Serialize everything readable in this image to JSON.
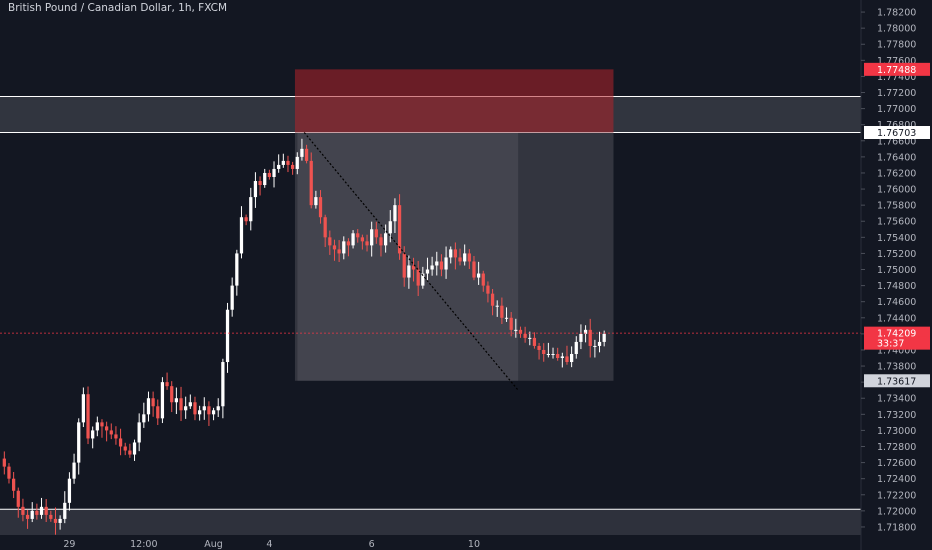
{
  "title": "British Pound / Canadian Dollar, 1h, FXCM",
  "colors": {
    "background": "#131722",
    "up": "#ffffff",
    "down": "#ef5350",
    "axis_text": "#b2b5be",
    "zone": "#3a3d47",
    "stop_box": "#b2222a",
    "profit_box": "#5a5c63",
    "current_price": "#f23645"
  },
  "chart_data": {
    "type": "candlestick",
    "symbol": "British Pound / Canadian Dollar",
    "interval": "1h",
    "source": "FXCM",
    "ylim": [
      1.717,
      1.7835
    ],
    "y_ticks": [
      "1.78200",
      "1.78000",
      "1.77800",
      "1.77600",
      "1.77400",
      "1.77200",
      "1.77000",
      "1.76800",
      "1.76600",
      "1.76400",
      "1.76200",
      "1.76000",
      "1.75800",
      "1.75600",
      "1.75400",
      "1.75200",
      "1.75000",
      "1.74800",
      "1.74600",
      "1.74400",
      "1.74200",
      "1.74000",
      "1.73800",
      "1.73600",
      "1.73400",
      "1.73200",
      "1.73000",
      "1.72800",
      "1.72600",
      "1.72400",
      "1.72200",
      "1.72000",
      "1.71800"
    ],
    "x_ticks": [
      "29",
      "12:00",
      "Aug",
      "4",
      "6",
      "10"
    ],
    "x_tick_index": [
      14,
      30,
      45,
      57,
      79,
      101
    ],
    "n_bars": 130,
    "closes": [
      1.7255,
      1.724,
      1.7225,
      1.7205,
      1.7195,
      1.719,
      1.72,
      1.7195,
      1.7205,
      1.7195,
      1.719,
      1.7185,
      1.719,
      1.721,
      1.724,
      1.726,
      1.731,
      1.7345,
      1.729,
      1.73,
      1.731,
      1.7305,
      1.73,
      1.7295,
      1.729,
      1.728,
      1.7275,
      1.727,
      1.7285,
      1.731,
      1.732,
      1.734,
      1.733,
      1.7315,
      1.736,
      1.7355,
      1.7335,
      1.734,
      1.7325,
      1.733,
      1.7335,
      1.732,
      1.7325,
      1.733,
      1.732,
      1.7325,
      1.733,
      1.7385,
      1.745,
      1.748,
      1.752,
      1.7565,
      1.756,
      1.759,
      1.761,
      1.7605,
      1.762,
      1.7615,
      1.7625,
      1.763,
      1.7635,
      1.763,
      1.7625,
      1.764,
      1.765,
      1.7635,
      1.758,
      1.759,
      1.7565,
      1.754,
      1.753,
      1.7525,
      1.752,
      1.7535,
      1.753,
      1.7545,
      1.754,
      1.7535,
      1.753,
      1.755,
      1.754,
      1.753,
      1.7545,
      1.756,
      1.758,
      1.752,
      1.749,
      1.7505,
      1.75,
      1.748,
      1.7495,
      1.75,
      1.7505,
      1.751,
      1.75,
      1.7515,
      1.7525,
      1.7515,
      1.751,
      1.752,
      1.751,
      1.749,
      1.7495,
      1.748,
      1.747,
      1.7455,
      1.7455,
      1.744,
      1.744,
      1.7425,
      1.7425,
      1.742,
      1.7415,
      1.7415,
      1.7405,
      1.74,
      1.7395,
      1.7395,
      1.7395,
      1.739,
      1.7392,
      1.7385,
      1.7395,
      1.741,
      1.742,
      1.7425,
      1.7405,
      1.7405,
      1.741,
      1.742
    ],
    "annotations": {
      "resistance_zone": [
        1.76703,
        1.7715
      ],
      "support_line": 1.7202,
      "short_position": {
        "entry": 1.76703,
        "stop": 1.77488,
        "target": 1.73617
      },
      "trend_line": {
        "from": [
          1.76703,
          1.735
        ]
      }
    },
    "price_labels": {
      "stop": "1.77488",
      "entry": "1.76703",
      "current": "1.74209",
      "countdown": "33:37",
      "target": "1.73617"
    }
  }
}
